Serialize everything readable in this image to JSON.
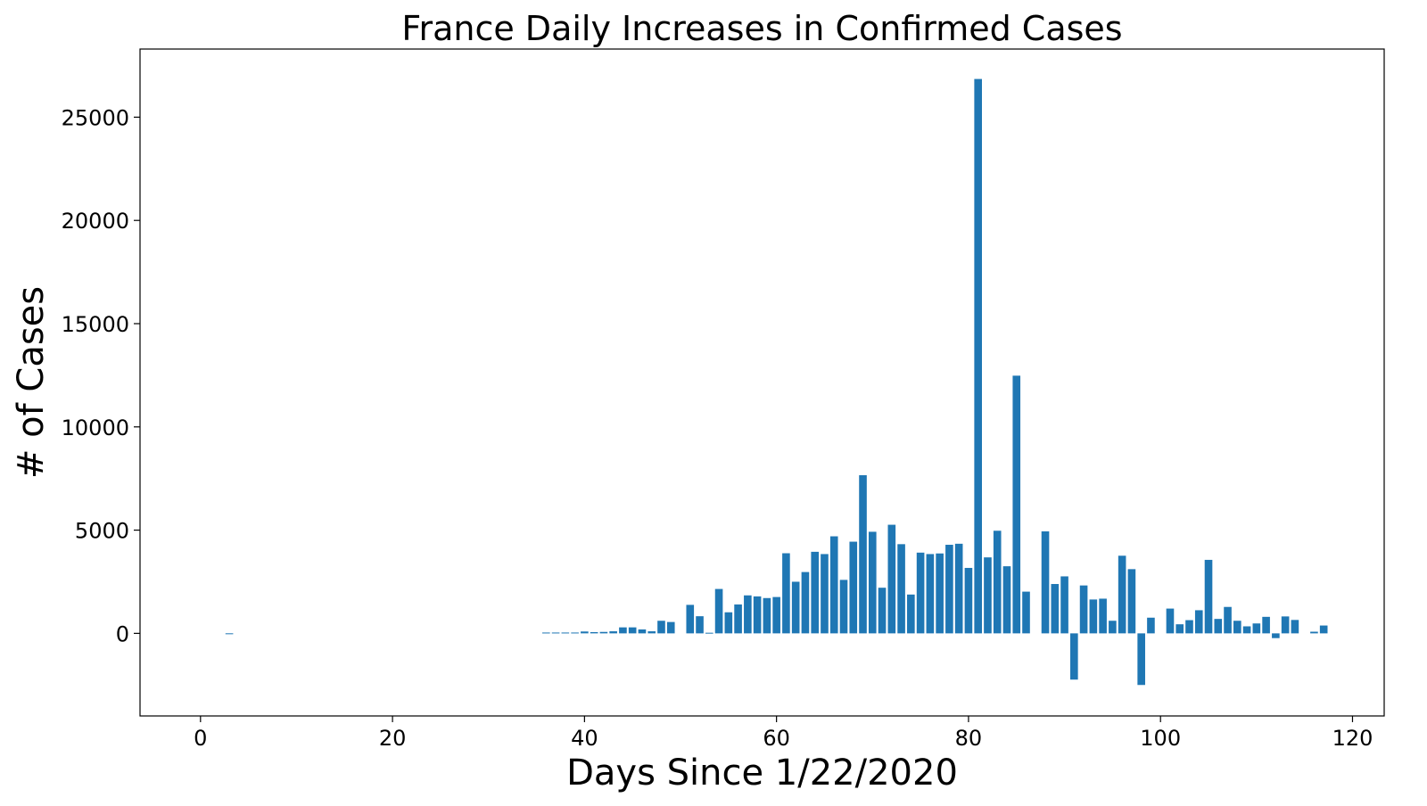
{
  "chart_data": {
    "type": "bar",
    "title": "France Daily Increases in Confirmed Cases",
    "xlabel": "Days Since 1/22/2020",
    "ylabel": "# of Cases",
    "xlim": [
      -6.3,
      123.3
    ],
    "ylim": [
      -4000,
      28300
    ],
    "xticks": [
      0,
      20,
      40,
      60,
      80,
      100,
      120
    ],
    "yticks": [
      0,
      5000,
      10000,
      15000,
      20000,
      25000
    ],
    "bar_color": "#1f77b4",
    "grid": false,
    "x": [
      0,
      1,
      2,
      3,
      4,
      5,
      6,
      7,
      8,
      9,
      10,
      11,
      12,
      13,
      14,
      15,
      16,
      17,
      18,
      19,
      20,
      21,
      22,
      23,
      24,
      25,
      26,
      27,
      28,
      29,
      30,
      31,
      32,
      33,
      34,
      35,
      36,
      37,
      38,
      39,
      40,
      41,
      42,
      43,
      44,
      45,
      46,
      47,
      48,
      49,
      50,
      51,
      52,
      53,
      54,
      55,
      56,
      57,
      58,
      59,
      60,
      61,
      62,
      63,
      64,
      65,
      66,
      67,
      68,
      69,
      70,
      71,
      72,
      73,
      74,
      75,
      76,
      77,
      78,
      79,
      80,
      81,
      82,
      83,
      84,
      85,
      86,
      87,
      88,
      89,
      90,
      91,
      92,
      93,
      94,
      95,
      96,
      97,
      98,
      99,
      100,
      101,
      102,
      103,
      104,
      105,
      106,
      107,
      108,
      109,
      110,
      111,
      112,
      113,
      114,
      115,
      116,
      117
    ],
    "values": [
      0,
      0,
      0,
      2,
      0,
      0,
      0,
      0,
      0,
      0,
      0,
      0,
      0,
      0,
      0,
      0,
      0,
      0,
      0,
      0,
      0,
      0,
      0,
      0,
      0,
      0,
      0,
      0,
      0,
      0,
      0,
      0,
      0,
      0,
      0,
      0,
      40,
      40,
      40,
      40,
      90,
      60,
      70,
      100,
      290,
      290,
      190,
      100,
      610,
      550,
      0,
      1380,
      830,
      30,
      2150,
      1020,
      1400,
      1840,
      1790,
      1710,
      1760,
      3880,
      2500,
      2970,
      3950,
      3840,
      4700,
      2590,
      4440,
      7660,
      4920,
      2210,
      5260,
      4320,
      1880,
      3910,
      3840,
      3870,
      4290,
      4340,
      3170,
      26850,
      3680,
      4970,
      3250,
      12480,
      2020,
      0,
      4940,
      2390,
      2760,
      -2240,
      2320,
      1640,
      1680,
      610,
      3760,
      3110,
      -2500,
      760,
      0,
      1200,
      440,
      640,
      1120,
      3560,
      700,
      1280,
      610,
      340,
      480,
      800,
      -230,
      820,
      650,
      0,
      80,
      380
    ]
  }
}
